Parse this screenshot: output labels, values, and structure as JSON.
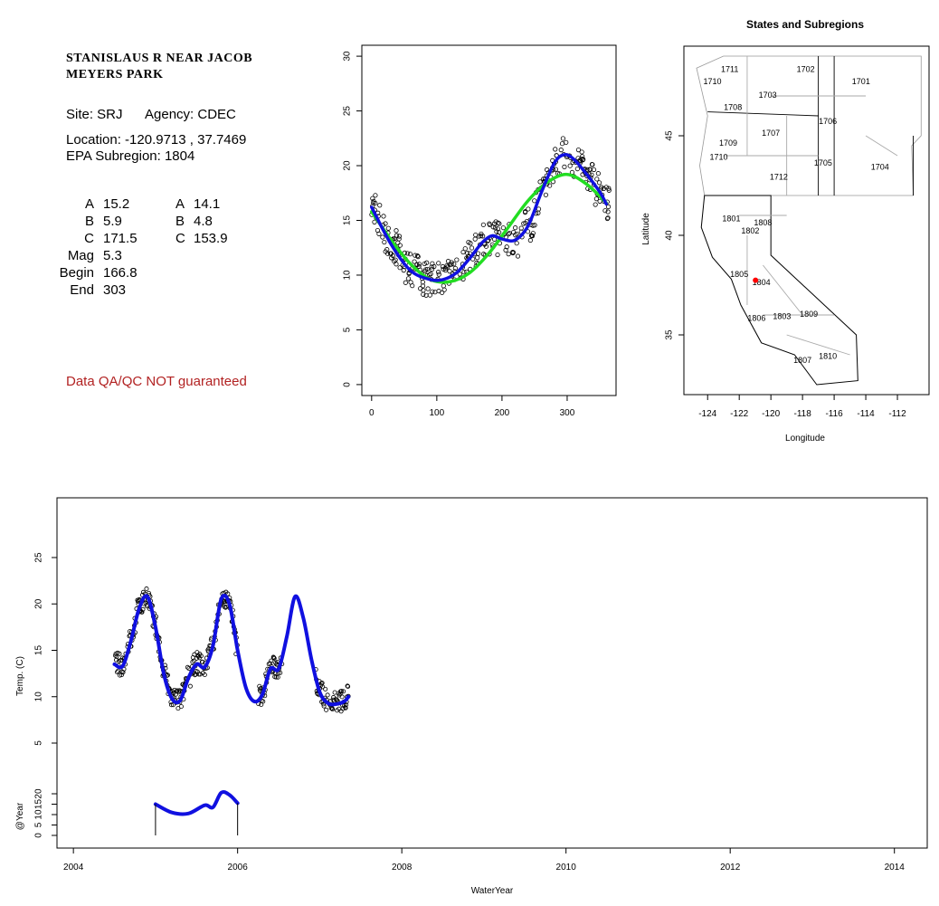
{
  "site": {
    "title_line1": "STANISLAUS R NEAR JACOB",
    "title_line2": "MEYERS PARK",
    "site_label": "Site: SRJ",
    "agency_label": "Agency: CDEC",
    "location_label": "Location: -120.9713 , 37.7469",
    "subregion_label": "EPA Subregion: 1804",
    "qa_note": "Data QA/QC NOT guaranteed",
    "qa_color": "#b22222"
  },
  "parameters": {
    "col1": [
      {
        "name": "A",
        "value": "15.2"
      },
      {
        "name": "B",
        "value": "5.9"
      },
      {
        "name": "C",
        "value": "171.5"
      },
      {
        "name": "Mag",
        "value": "5.3"
      },
      {
        "name": "Begin",
        "value": "166.8"
      },
      {
        "name": "End",
        "value": "303"
      }
    ],
    "col2": [
      {
        "name": "A",
        "value": "14.1"
      },
      {
        "name": "B",
        "value": "4.8"
      },
      {
        "name": "C",
        "value": "153.9"
      }
    ]
  },
  "chart_data": [
    {
      "type": "scatter",
      "title": "",
      "xlabel": "",
      "ylabel": "",
      "xlim": [
        -15,
        375
      ],
      "ylim": [
        -1,
        31
      ],
      "xticks": [
        0,
        100,
        200,
        300
      ],
      "yticks": [
        0,
        5,
        10,
        15,
        20,
        25,
        30
      ],
      "points_description": "daily water temperature vs day of water year",
      "series": [
        {
          "name": "",
          "color": "#22dd22",
          "values_x": [
            0,
            30,
            60,
            90,
            120,
            150,
            180,
            210,
            240,
            270,
            300,
            330,
            360
          ],
          "values_y": [
            15.8,
            13.2,
            11.0,
            9.6,
            9.4,
            10.2,
            12.0,
            14.4,
            16.8,
            18.5,
            19.2,
            18.3,
            16.6
          ]
        },
        {
          "name": "",
          "color": "#1010e0",
          "values_x": [
            0,
            30,
            60,
            90,
            110,
            130,
            150,
            170,
            185,
            200,
            220,
            240,
            260,
            280,
            295,
            310,
            330,
            350,
            360
          ],
          "values_y": [
            16.2,
            12.8,
            10.4,
            9.6,
            9.6,
            10.2,
            11.5,
            13.0,
            13.6,
            13.3,
            13.2,
            14.5,
            17.5,
            20.2,
            21.0,
            20.6,
            19.2,
            17.6,
            16.5
          ]
        }
      ]
    },
    {
      "type": "map",
      "title": "States and Subregions",
      "xlabel": "Longitude",
      "ylabel": "Latitude",
      "xlim": [
        -125.5,
        -110
      ],
      "ylim": [
        32,
        49.5
      ],
      "xticks": [
        -124,
        -122,
        -120,
        -118,
        -116,
        -114,
        -112
      ],
      "yticks": [
        35,
        40,
        45
      ],
      "marker": {
        "lon": -120.9713,
        "lat": 37.7469,
        "color": "#ff0000"
      },
      "region_labels": [
        {
          "label": "1711",
          "lon": -122.6,
          "lat": 48.2
        },
        {
          "label": "1710",
          "lon": -123.7,
          "lat": 47.6
        },
        {
          "label": "1702",
          "lon": -117.8,
          "lat": 48.2
        },
        {
          "label": "1701",
          "lon": -114.3,
          "lat": 47.6
        },
        {
          "label": "1703",
          "lon": -120.2,
          "lat": 46.9
        },
        {
          "label": "1708",
          "lon": -122.4,
          "lat": 46.3
        },
        {
          "label": "1706",
          "lon": -116.4,
          "lat": 45.6
        },
        {
          "label": "1707",
          "lon": -120.0,
          "lat": 45.0
        },
        {
          "label": "1709",
          "lon": -122.7,
          "lat": 44.5
        },
        {
          "label": "1710",
          "lon": -123.3,
          "lat": 43.8
        },
        {
          "label": "1705",
          "lon": -116.7,
          "lat": 43.5
        },
        {
          "label": "1704",
          "lon": -113.1,
          "lat": 43.3
        },
        {
          "label": "1712",
          "lon": -119.5,
          "lat": 42.8
        },
        {
          "label": "1801",
          "lon": -122.5,
          "lat": 40.7
        },
        {
          "label": "1808",
          "lon": -120.5,
          "lat": 40.5
        },
        {
          "label": "1802",
          "lon": -121.3,
          "lat": 40.1
        },
        {
          "label": "1805",
          "lon": -122.0,
          "lat": 37.9
        },
        {
          "label": "1804",
          "lon": -120.6,
          "lat": 37.5
        },
        {
          "label": "1806",
          "lon": -120.9,
          "lat": 35.7
        },
        {
          "label": "1803",
          "lon": -119.3,
          "lat": 35.8
        },
        {
          "label": "1809",
          "lon": -117.6,
          "lat": 35.9
        },
        {
          "label": "1807",
          "lon": -118.0,
          "lat": 33.6
        },
        {
          "label": "1810",
          "lon": -116.4,
          "lat": 33.8
        }
      ]
    },
    {
      "type": "line",
      "title": "",
      "xlabel": "WaterYear",
      "ylabel": "Temp. (C)",
      "ylabel2": "@Year",
      "xlim": [
        2003.8,
        2014.4
      ],
      "ylim": [
        0,
        30
      ],
      "xticks": [
        2004,
        2006,
        2008,
        2010,
        2012,
        2014
      ],
      "yticks": [
        5,
        10,
        15,
        20,
        25
      ],
      "yticks2": [
        0,
        5,
        10,
        15,
        20
      ],
      "series": [
        {
          "name": "",
          "color": "#1010e0",
          "x": [
            2004.5,
            2004.6,
            2004.7,
            2004.8,
            2004.9,
            2005.0,
            2005.1,
            2005.2,
            2005.3,
            2005.4,
            2005.5,
            2005.6,
            2005.7,
            2005.8,
            2005.9,
            2006.0,
            2006.1,
            2006.2,
            2006.3,
            2006.4,
            2006.5,
            2006.6,
            2006.7,
            2006.8,
            2006.9,
            2007.0,
            2007.1,
            2007.2,
            2007.3,
            2007.35
          ],
          "y": [
            13.5,
            13.3,
            16.0,
            19.5,
            20.8,
            17.5,
            12.5,
            9.8,
            9.6,
            12.0,
            13.5,
            13.2,
            15.5,
            20.5,
            20.0,
            15.0,
            11.0,
            9.5,
            10.2,
            13.0,
            13.0,
            16.5,
            20.8,
            18.5,
            14.0,
            10.5,
            9.3,
            9.2,
            9.5,
            10.0
          ]
        },
        {
          "name": "",
          "color": "#1010e0",
          "x": [
            2005.0,
            2005.2,
            2005.4,
            2005.6,
            2005.7,
            2005.8,
            2005.9,
            2006.0
          ],
          "y": [
            15.0,
            11.0,
            10.5,
            14.5,
            13.5,
            20.5,
            19.5,
            15.5
          ]
        }
      ]
    }
  ]
}
